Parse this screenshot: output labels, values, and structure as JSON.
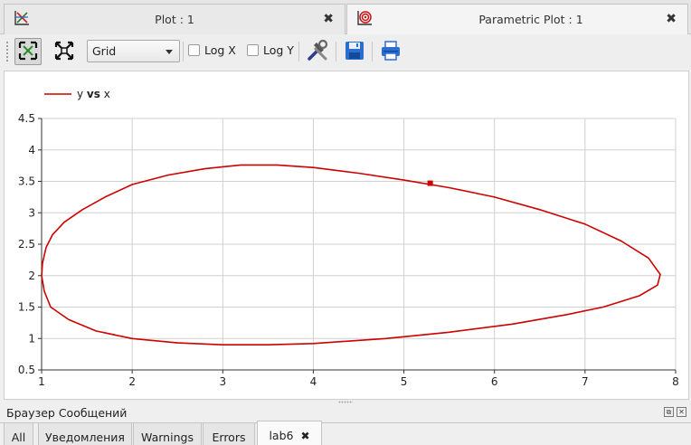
{
  "tabs": [
    {
      "label": "Plot : 1",
      "icon": "plot-icon",
      "active": false
    },
    {
      "label": "Parametric Plot : 1",
      "icon": "parametric-plot-icon",
      "active": true
    }
  ],
  "toolbar": {
    "fit_icon": "fit-in-view-icon",
    "expand_icon": "expand-icon",
    "grid_select": {
      "value": "Grid"
    },
    "log_x": {
      "label": "Log X",
      "checked": false
    },
    "log_y": {
      "label": "Log Y",
      "checked": false
    },
    "setup_icon": "setup-tools-icon",
    "save_icon": "save-icon",
    "print_icon": "print-icon"
  },
  "chart_data": {
    "type": "line",
    "title": "",
    "xlabel": "",
    "ylabel": "",
    "legend": {
      "text_y": "y",
      "text_vs": "vs",
      "text_x": "x",
      "placement": "top-left"
    },
    "xlim": [
      1,
      8
    ],
    "ylim": [
      0.5,
      4.5
    ],
    "xticks": [
      "1",
      "2",
      "3",
      "4",
      "5",
      "6",
      "7",
      "8"
    ],
    "yticks": [
      "0.5",
      "1",
      "1.5",
      "2",
      "2.5",
      "3",
      "3.5",
      "4",
      "4.5"
    ],
    "grid": true,
    "color": "#cc0000",
    "series": [
      {
        "name": "y vs x",
        "x": [
          1.0,
          1.01,
          1.05,
          1.12,
          1.25,
          1.45,
          1.7,
          2.0,
          2.4,
          2.8,
          3.2,
          3.6,
          4.0,
          4.5,
          5.0,
          5.5,
          6.0,
          6.5,
          7.0,
          7.4,
          7.7,
          7.83,
          7.8,
          7.6,
          7.2,
          6.8,
          6.2,
          5.5,
          4.8,
          4.0,
          3.5,
          3.0,
          2.5,
          2.0,
          1.6,
          1.3,
          1.1,
          1.03,
          1.0
        ],
        "y": [
          2.0,
          2.2,
          2.45,
          2.65,
          2.85,
          3.05,
          3.25,
          3.45,
          3.6,
          3.7,
          3.76,
          3.76,
          3.72,
          3.63,
          3.52,
          3.4,
          3.25,
          3.05,
          2.82,
          2.55,
          2.28,
          2.02,
          1.85,
          1.68,
          1.5,
          1.38,
          1.23,
          1.1,
          1.0,
          0.92,
          0.9,
          0.9,
          0.93,
          1.0,
          1.12,
          1.3,
          1.5,
          1.75,
          2.0
        ]
      }
    ],
    "marker": {
      "x": 5.29,
      "y": 3.47
    }
  },
  "messages": {
    "title": "Браузер Сообщений",
    "tabs": [
      {
        "label": "All",
        "active": false
      },
      {
        "label": "Уведомления",
        "active": false
      },
      {
        "label": "Warnings",
        "active": false
      },
      {
        "label": "Errors",
        "active": false
      },
      {
        "label": "lab6",
        "active": true,
        "closable": true
      }
    ]
  }
}
